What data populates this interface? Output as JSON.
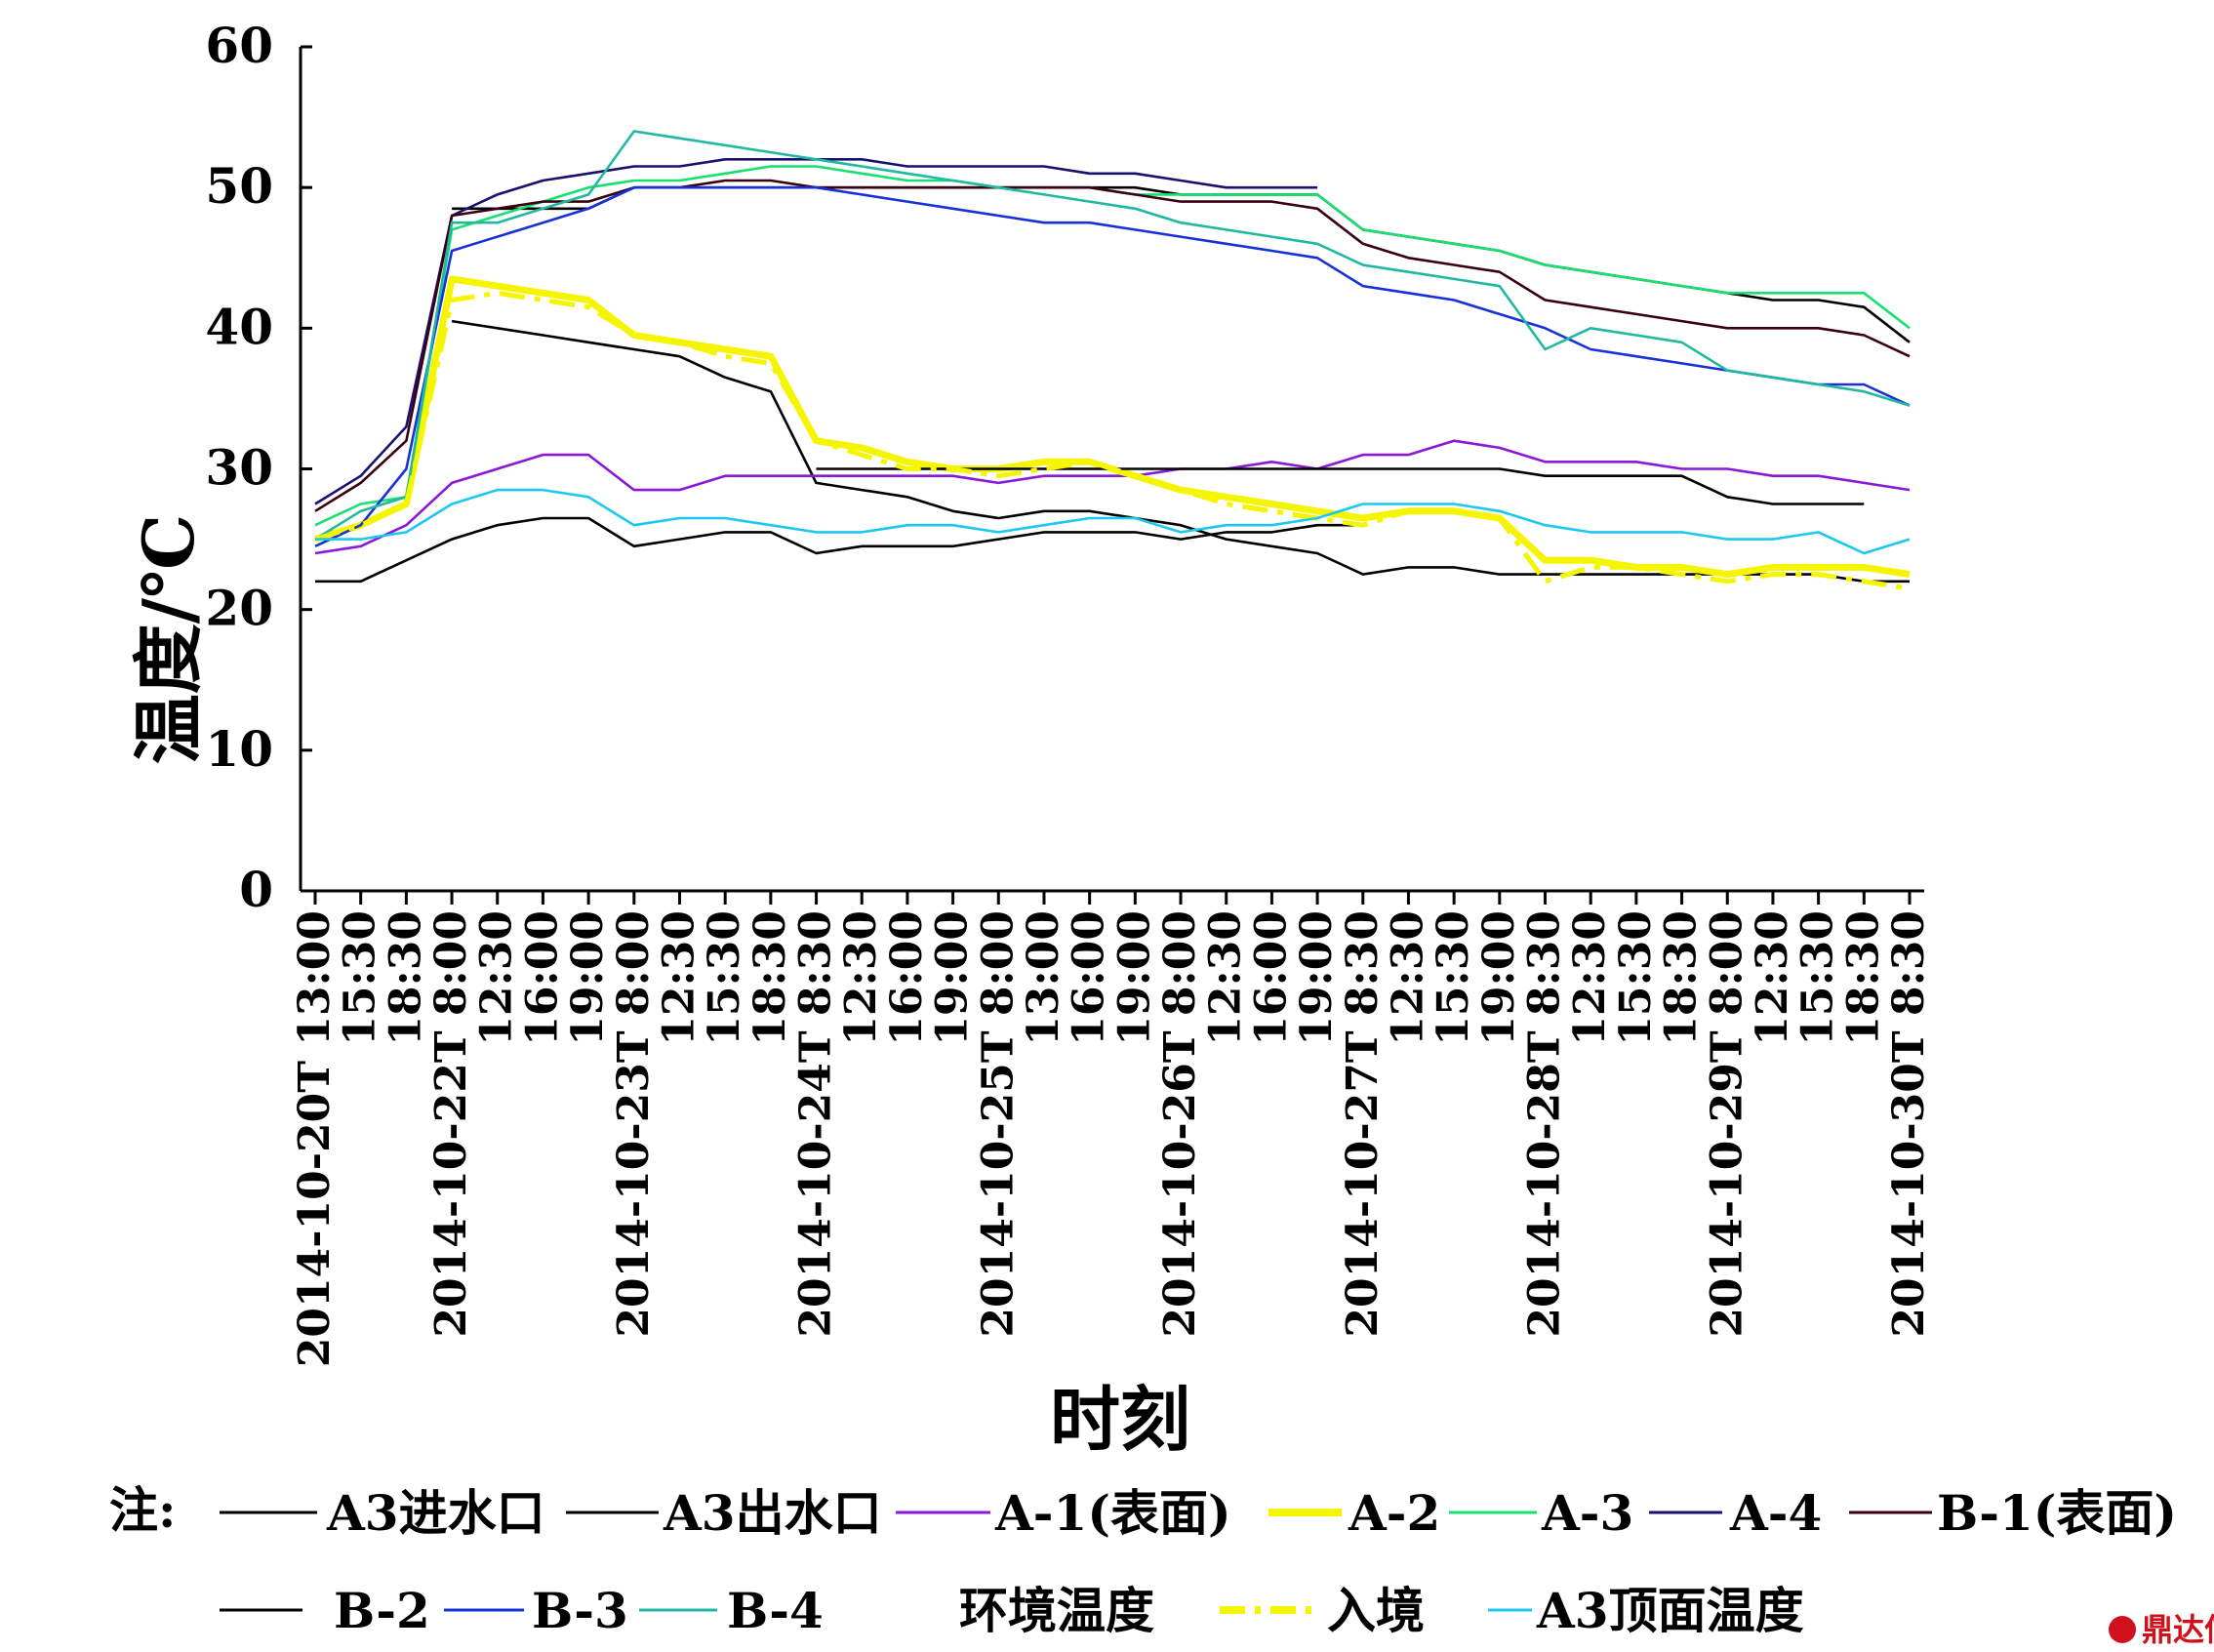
{
  "chart_data": {
    "type": "line",
    "xlabel": "时刻",
    "ylabel": "温度/℃",
    "ylim": [
      0,
      60
    ],
    "yticks": [
      0,
      10,
      20,
      30,
      40,
      50,
      60
    ],
    "categories": [
      "2014-10-20T 13:00",
      "15:30",
      "18:30",
      "2014-10-22T 8:00",
      "12:30",
      "16:00",
      "19:00",
      "2014-10-23T 8:00",
      "12:30",
      "15:30",
      "18:30",
      "2014-10-24T 8:30",
      "12:30",
      "16:00",
      "19:00",
      "2014-10-25T 8:00",
      "13:00",
      "16:00",
      "19:00",
      "2014-10-26T 8:00",
      "12:30",
      "16:00",
      "19:00",
      "2014-10-27T 8:30",
      "12:30",
      "15:30",
      "19:00",
      "2014-10-28T 8:30",
      "12:30",
      "15:30",
      "18:30",
      "2014-10-29T 8:00",
      "12:30",
      "15:30",
      "18:30",
      "2014-10-30T 8:30"
    ],
    "legend_prefix": "注:",
    "series": [
      {
        "name": "A3进水口",
        "color": "#000000",
        "values": [
          null,
          null,
          null,
          48.5,
          48.5,
          48.5,
          48.5,
          50.0,
          50.0,
          50.0,
          50.0,
          50.0,
          50.0,
          50.0,
          50.0,
          50.0,
          50.0,
          50.0,
          50.0,
          49.5,
          49.5,
          49.5,
          49.5,
          47.0,
          46.5,
          46.0,
          45.5,
          44.5,
          44.0,
          43.5,
          43.0,
          42.5,
          42.0,
          42.0,
          41.5,
          39.0
        ]
      },
      {
        "name": "A3出水口",
        "color": "#000000",
        "values": [
          null,
          null,
          null,
          40.5,
          40.0,
          39.5,
          39.0,
          38.5,
          38.0,
          36.5,
          35.5,
          29.0,
          28.5,
          28.0,
          27.0,
          26.5,
          27.0,
          27.0,
          26.5,
          26.0,
          25.0,
          24.5,
          24.0,
          22.5,
          23.0,
          23.0,
          22.5,
          22.5,
          22.5,
          22.5,
          22.5,
          22.5,
          22.5,
          22.5,
          22.0,
          22.0
        ]
      },
      {
        "name": "A-1(表面)",
        "color": "#8a18d8",
        "values": [
          24.0,
          24.5,
          26.0,
          29.0,
          30.0,
          31.0,
          31.0,
          28.5,
          28.5,
          29.5,
          29.5,
          29.5,
          29.5,
          29.5,
          29.5,
          29.0,
          29.5,
          29.5,
          29.5,
          30.0,
          30.0,
          30.5,
          30.0,
          31.0,
          31.0,
          32.0,
          31.5,
          30.5,
          30.5,
          30.5,
          30.0,
          30.0,
          29.5,
          29.5,
          29.0,
          28.5
        ]
      },
      {
        "name": "A-2",
        "color": "#f5f500",
        "values": [
          25.0,
          26.0,
          27.5,
          43.5,
          43.0,
          42.5,
          42.0,
          39.5,
          39.0,
          38.5,
          38.0,
          32.0,
          31.5,
          30.5,
          30.0,
          30.0,
          30.5,
          30.5,
          29.5,
          28.5,
          28.0,
          27.5,
          27.0,
          26.5,
          27.0,
          27.0,
          26.5,
          23.5,
          23.5,
          23.0,
          23.0,
          22.5,
          23.0,
          23.0,
          23.0,
          22.5
        ]
      },
      {
        "name": "A-3",
        "color": "#18e070",
        "values": [
          26.0,
          27.5,
          28.0,
          47.0,
          48.0,
          49.0,
          50.0,
          50.5,
          50.5,
          51.0,
          51.5,
          51.5,
          51.0,
          50.5,
          50.5,
          50.0,
          50.0,
          50.0,
          49.5,
          49.5,
          49.5,
          49.5,
          49.5,
          47.0,
          46.5,
          46.0,
          45.5,
          44.5,
          44.0,
          43.5,
          43.0,
          42.5,
          42.5,
          42.5,
          42.5,
          40.0
        ]
      },
      {
        "name": "A-4",
        "color": "#1a1070",
        "values": [
          27.5,
          29.5,
          33.0,
          48.0,
          49.5,
          50.5,
          51.0,
          51.5,
          51.5,
          52.0,
          52.0,
          52.0,
          52.0,
          51.5,
          51.5,
          51.5,
          51.5,
          51.0,
          51.0,
          50.5,
          50.0,
          50.0,
          50.0,
          null,
          null,
          null,
          null,
          null,
          null,
          null,
          null,
          null,
          null,
          null,
          null,
          null
        ]
      },
      {
        "name": "B-1(表面)",
        "color": "#3a0010",
        "values": [
          27.0,
          29.0,
          32.0,
          48.0,
          48.5,
          49.0,
          49.0,
          50.0,
          50.0,
          50.5,
          50.5,
          50.0,
          50.0,
          50.0,
          50.0,
          50.0,
          50.0,
          50.0,
          49.5,
          49.0,
          49.0,
          49.0,
          48.5,
          46.0,
          45.0,
          44.5,
          44.0,
          42.0,
          41.5,
          41.0,
          40.5,
          40.0,
          40.0,
          40.0,
          39.5,
          38.0
        ]
      },
      {
        "name": "B-2",
        "color": "#000000",
        "values": [
          null,
          null,
          null,
          null,
          null,
          null,
          null,
          null,
          null,
          null,
          null,
          30.0,
          30.0,
          30.0,
          30.0,
          30.0,
          30.0,
          30.0,
          30.0,
          30.0,
          30.0,
          30.0,
          30.0,
          30.0,
          30.0,
          30.0,
          30.0,
          29.5,
          29.5,
          29.5,
          29.5,
          28.0,
          27.5,
          27.5,
          27.5,
          null
        ]
      },
      {
        "name": "B-3",
        "color": "#1830d8",
        "values": [
          24.5,
          26.0,
          30.0,
          45.5,
          46.5,
          47.5,
          48.5,
          50.0,
          50.0,
          50.0,
          50.0,
          50.0,
          49.5,
          49.0,
          48.5,
          48.0,
          47.5,
          47.5,
          47.0,
          46.5,
          46.0,
          45.5,
          45.0,
          43.0,
          42.5,
          42.0,
          41.0,
          40.0,
          38.5,
          38.0,
          37.5,
          37.0,
          36.5,
          36.0,
          36.0,
          34.5
        ]
      },
      {
        "name": "B-4",
        "color": "#20b8a0",
        "values": [
          25.0,
          27.0,
          28.0,
          47.5,
          47.5,
          48.5,
          49.5,
          54.0,
          53.5,
          53.0,
          52.5,
          52.0,
          51.5,
          51.0,
          50.5,
          50.0,
          49.5,
          49.0,
          48.5,
          47.5,
          47.0,
          46.5,
          46.0,
          44.5,
          44.0,
          43.5,
          43.0,
          38.5,
          40.0,
          39.5,
          39.0,
          37.0,
          36.5,
          36.0,
          35.5,
          34.5
        ]
      },
      {
        "name": "环境温度",
        "color": "#000000",
        "values": [
          22.0,
          22.0,
          23.5,
          25.0,
          26.0,
          26.5,
          26.5,
          24.5,
          25.0,
          25.5,
          25.5,
          24.0,
          24.5,
          24.5,
          24.5,
          25.0,
          25.5,
          25.5,
          25.5,
          25.0,
          25.5,
          25.5,
          26.0,
          26.0,
          null,
          null,
          null,
          null,
          null,
          null,
          null,
          null,
          null,
          null,
          null,
          null
        ]
      },
      {
        "name": "入境",
        "color": "#f5f500",
        "values": [
          25.0,
          26.0,
          27.5,
          42.0,
          42.5,
          42.0,
          41.5,
          39.5,
          39.0,
          38.0,
          37.5,
          32.0,
          31.0,
          30.0,
          30.0,
          29.5,
          30.0,
          30.5,
          29.5,
          28.5,
          27.5,
          27.0,
          26.5,
          26.0,
          27.0,
          27.0,
          26.5,
          22.0,
          23.0,
          23.0,
          22.5,
          22.0,
          22.5,
          22.5,
          22.0,
          21.5
        ]
      },
      {
        "name": "A3顶面温度",
        "color": "#1cc8f0",
        "values": [
          25.0,
          25.0,
          25.5,
          27.5,
          28.5,
          28.5,
          28.0,
          26.0,
          26.5,
          26.5,
          26.0,
          25.5,
          25.5,
          26.0,
          26.0,
          25.5,
          26.0,
          26.5,
          26.5,
          25.5,
          26.0,
          26.0,
          26.5,
          27.5,
          27.5,
          27.5,
          27.0,
          26.0,
          25.5,
          25.5,
          25.5,
          25.0,
          25.0,
          25.5,
          24.0,
          25.0
        ]
      }
    ]
  },
  "watermark": "鼎达信"
}
